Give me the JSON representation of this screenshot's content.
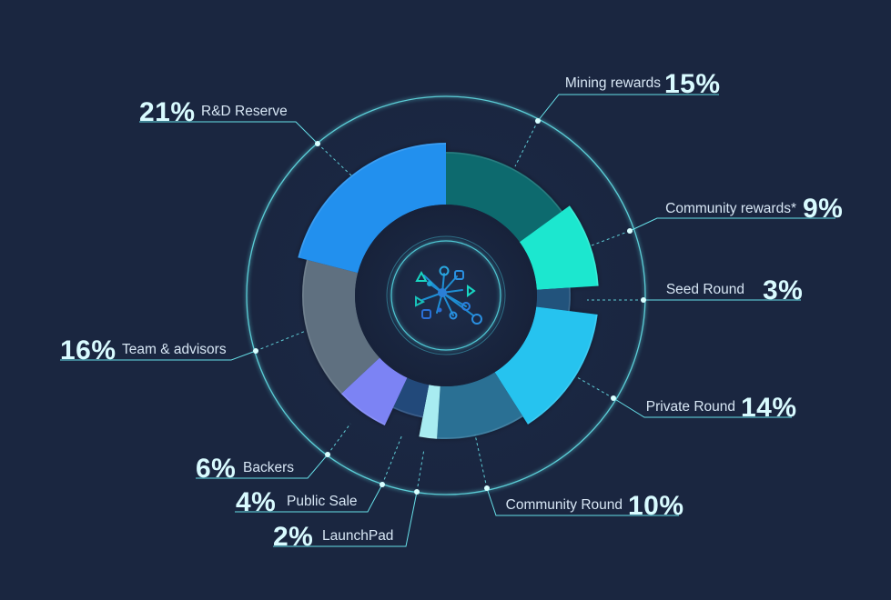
{
  "colors": {
    "background": "#1a2640",
    "ring": "#5fd6df",
    "text_percent": "#d9fbff",
    "text_label": "#d7e6f4"
  },
  "logo": {
    "icon": "network-node-logo-icon"
  },
  "chart_data": {
    "type": "pie",
    "style": "exploded-donut",
    "start_angle_deg": 0,
    "direction": "clockwise",
    "legend": "none",
    "slices": [
      {
        "label": "Mining rewards",
        "percent_text": "15%",
        "value": 15,
        "color": "#0e6a6e",
        "thickness": "normal"
      },
      {
        "label": "Community rewards*",
        "percent_text": "9%",
        "value": 9,
        "color": "#1de7cf",
        "thickness": "large"
      },
      {
        "label": "Seed Round",
        "percent_text": "3%",
        "value": 3,
        "color": "#24527c",
        "thickness": "small"
      },
      {
        "label": "Private Round",
        "percent_text": "14%",
        "value": 14,
        "color": "#25c3ef",
        "thickness": "large"
      },
      {
        "label": "Community Round",
        "percent_text": "10%",
        "value": 10,
        "color": "#2a6f94",
        "thickness": "normal"
      },
      {
        "label": "LaunchPad",
        "percent_text": "2%",
        "value": 2,
        "color": "#a8ecf1",
        "thickness": "normal"
      },
      {
        "label": "Public Sale",
        "percent_text": "4%",
        "value": 4,
        "color": "#23497a",
        "thickness": "small"
      },
      {
        "label": "Backers",
        "percent_text": "6%",
        "value": 6,
        "color": "#7b83f4",
        "thickness": "normal"
      },
      {
        "label": "Team & advisors",
        "percent_text": "16%",
        "value": 16,
        "color": "#5e7080",
        "thickness": "normal"
      },
      {
        "label": "R&D Reserve",
        "percent_text": "21%",
        "value": 21,
        "color": "#2390ee",
        "thickness": "large"
      }
    ]
  }
}
